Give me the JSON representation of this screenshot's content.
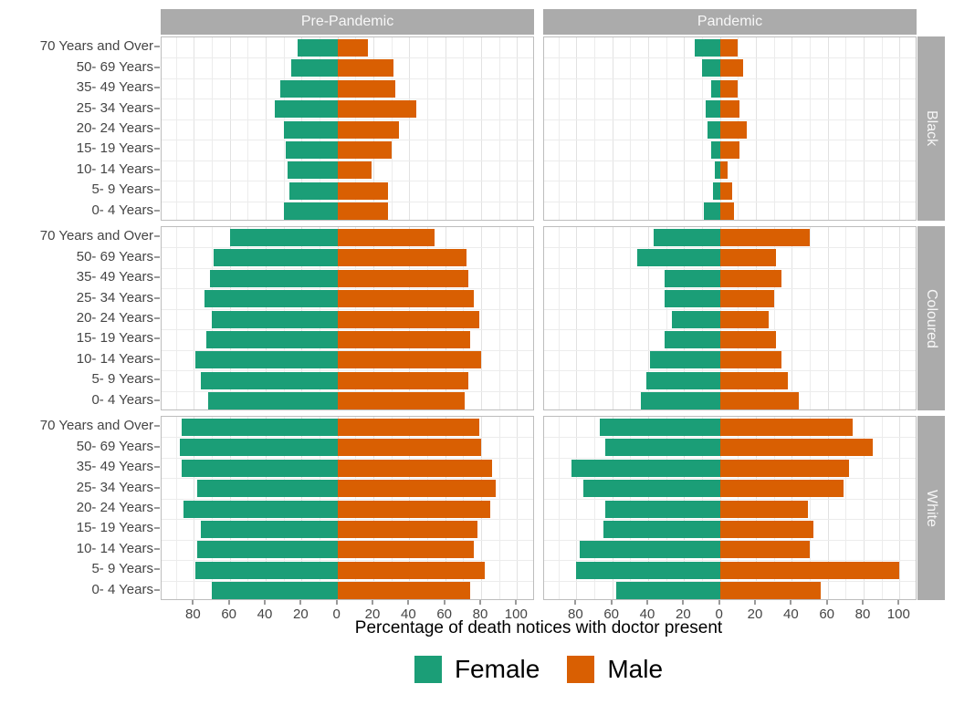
{
  "colors": {
    "female": "#1b9e77",
    "male": "#d95f02",
    "strip_bg": "#ababab",
    "strip_text": "#f7f7f7",
    "grid_major": "#e2e2e2",
    "grid_minor": "#ececec",
    "panel_border": "#bdbdbd",
    "axis_text": "#454545"
  },
  "facets": {
    "columns": [
      "Pre-Pandemic",
      "Pandemic"
    ],
    "rows": [
      "Black",
      "Coloured",
      "White"
    ]
  },
  "y_axis": {
    "age_groups": [
      "70 Years and Over",
      "50- 69 Years",
      "35- 49 Years",
      "25- 34 Years",
      "20- 24 Years",
      "15- 19 Years",
      "10- 14 Years",
      "5- 9 Years",
      "0- 4 Years"
    ]
  },
  "x_axis": {
    "title": "Percentage of death notices with doctor present",
    "tick_values": [
      -80,
      -60,
      -40,
      -20,
      0,
      20,
      40,
      60,
      80,
      100
    ],
    "tick_labels": [
      "80",
      "60",
      "40",
      "20",
      "0",
      "20",
      "40",
      "60",
      "80",
      "100"
    ],
    "domain": [
      -98,
      110
    ]
  },
  "legend": [
    {
      "label": "Female",
      "color_key": "female"
    },
    {
      "label": "Male",
      "color_key": "male"
    }
  ],
  "chart_data": {
    "type": "bar",
    "subtype": "back-to-back population pyramid, faceted 2 columns x 3 rows",
    "orientation": "horizontal",
    "title": "",
    "xlabel": "Percentage of death notices with doctor present",
    "ylabel": "",
    "categories_top_to_bottom": [
      "70 Years and Over",
      "50- 69 Years",
      "35- 49 Years",
      "25- 34 Years",
      "20- 24 Years",
      "15- 19 Years",
      "10- 14 Years",
      "5- 9 Years",
      "0- 4 Years"
    ],
    "value_unit": "percent",
    "female_plotted_leftward": true,
    "x_domain": [
      -98,
      110
    ],
    "x_ticks": [
      -80,
      -60,
      -40,
      -20,
      0,
      20,
      40,
      60,
      80,
      100
    ],
    "grid": true,
    "legend_position": "bottom",
    "panels": [
      {
        "row": "Black",
        "col": "Pre-Pandemic",
        "female": [
          22,
          26,
          32,
          35,
          30,
          29,
          28,
          27,
          30
        ],
        "male": [
          17,
          31,
          32,
          44,
          34,
          30,
          19,
          28,
          28
        ]
      },
      {
        "row": "Black",
        "col": "Pandemic",
        "female": [
          14,
          10,
          5,
          8,
          7,
          5,
          3,
          4,
          9
        ],
        "male": [
          10,
          13,
          10,
          11,
          15,
          11,
          4,
          7,
          8
        ]
      },
      {
        "row": "Coloured",
        "col": "Pre-Pandemic",
        "female": [
          60,
          69,
          71,
          74,
          70,
          73,
          79,
          76,
          72
        ],
        "male": [
          54,
          72,
          73,
          76,
          79,
          74,
          80,
          73,
          71
        ]
      },
      {
        "row": "Coloured",
        "col": "Pandemic",
        "female": [
          37,
          46,
          31,
          31,
          27,
          31,
          39,
          41,
          44
        ],
        "male": [
          50,
          31,
          34,
          30,
          27,
          31,
          34,
          38,
          44
        ]
      },
      {
        "row": "White",
        "col": "Pre-Pandemic",
        "female": [
          87,
          88,
          87,
          78,
          86,
          76,
          78,
          79,
          70
        ],
        "male": [
          79,
          80,
          86,
          88,
          85,
          78,
          76,
          82,
          74
        ]
      },
      {
        "row": "White",
        "col": "Pandemic",
        "female": [
          67,
          64,
          83,
          76,
          64,
          65,
          78,
          80,
          58
        ],
        "male": [
          74,
          85,
          72,
          69,
          49,
          52,
          50,
          100,
          56
        ]
      }
    ]
  }
}
